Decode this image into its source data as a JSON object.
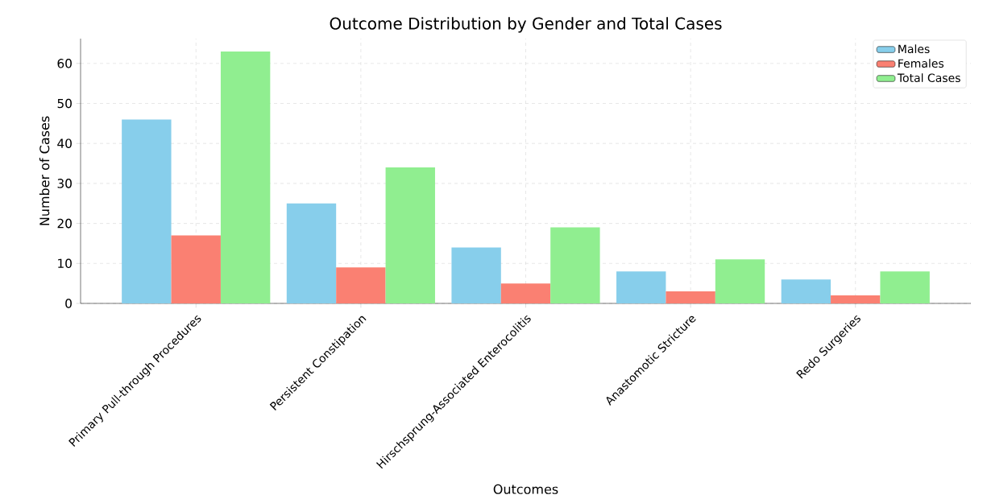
{
  "chart_data": {
    "type": "bar",
    "title": "Outcome Distribution by Gender and Total Cases",
    "xlabel": "Outcomes",
    "ylabel": "Number of Cases",
    "categories": [
      "Primary Pull-through Procedures",
      "Persistent Constipation",
      "Hirschsprung-Associated Enterocolitis",
      "Anastomotic Stricture",
      "Redo Surgeries"
    ],
    "series": [
      {
        "name": "Males",
        "color": "#87ceeb",
        "values": [
          46,
          25,
          14,
          8,
          6
        ]
      },
      {
        "name": "Females",
        "color": "#fa8072",
        "values": [
          17,
          9,
          5,
          3,
          2
        ]
      },
      {
        "name": "Total Cases",
        "color": "#90ee90",
        "values": [
          63,
          34,
          19,
          11,
          8
        ]
      }
    ],
    "ylim": [
      0,
      66.2
    ],
    "yticks": [
      0,
      10,
      20,
      30,
      40,
      50,
      60
    ],
    "grid": true,
    "legend": "top right"
  }
}
